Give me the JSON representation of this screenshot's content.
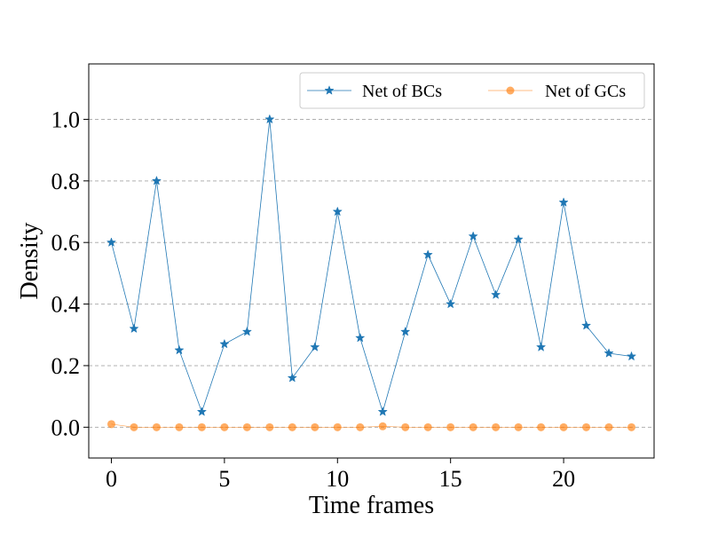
{
  "chart_data": {
    "type": "line",
    "title": "",
    "xlabel": "Time frames",
    "ylabel": "Density",
    "xlim": [
      -1,
      24
    ],
    "ylim": [
      -0.1,
      1.18
    ],
    "x_ticks": [
      0,
      5,
      10,
      15,
      20
    ],
    "x_tick_labels": [
      "0",
      "5",
      "10",
      "15",
      "20"
    ],
    "y_ticks": [
      0.0,
      0.2,
      0.4,
      0.6,
      0.8,
      1.0
    ],
    "y_tick_labels": [
      "0.0",
      "0.2",
      "0.4",
      "0.6",
      "0.8",
      "1.0"
    ],
    "grid": "horizontal dashed",
    "legend_position": "top-right",
    "x": [
      0,
      1,
      2,
      3,
      4,
      5,
      6,
      7,
      8,
      9,
      10,
      11,
      12,
      13,
      14,
      15,
      16,
      17,
      18,
      19,
      20,
      21,
      22,
      23
    ],
    "series": [
      {
        "name": "Net of BCs",
        "color": "#1f77b4",
        "marker": "star",
        "values": [
          0.6,
          0.32,
          0.8,
          0.25,
          0.05,
          0.27,
          0.31,
          1.0,
          0.16,
          0.26,
          0.7,
          0.29,
          0.05,
          0.31,
          0.56,
          0.4,
          0.62,
          0.43,
          0.61,
          0.26,
          0.73,
          0.33,
          0.24,
          0.23
        ]
      },
      {
        "name": "Net of GCs",
        "color": "#ff7f0e",
        "marker": "circle",
        "values": [
          0.01,
          0.0,
          0.0,
          0.0,
          0.0,
          0.0,
          0.0,
          0.0,
          0.0,
          0.0,
          0.0,
          0.0,
          0.003,
          0.0,
          0.0,
          0.0,
          0.0,
          0.0,
          0.0,
          0.0,
          0.0,
          0.0,
          0.0,
          0.0
        ]
      }
    ]
  }
}
